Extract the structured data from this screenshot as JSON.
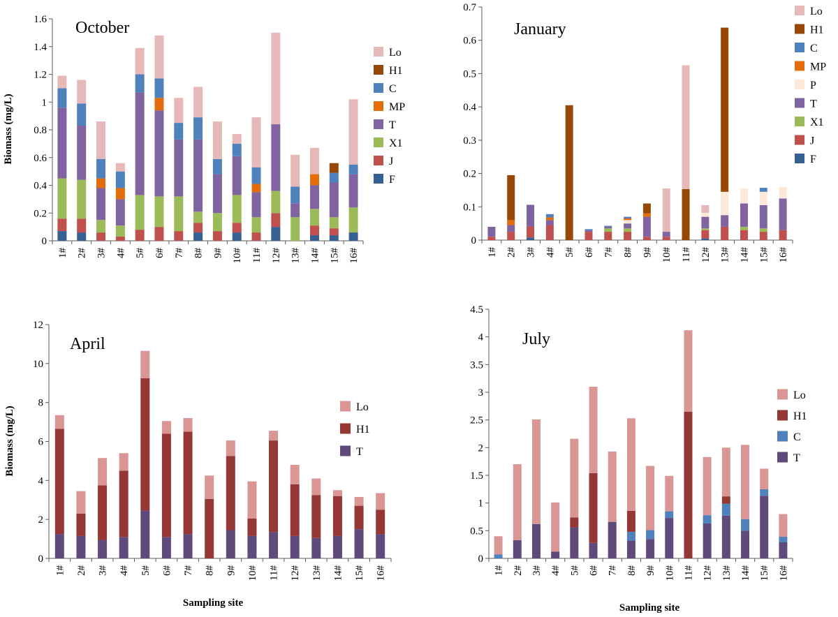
{
  "colors": {
    "Lo": "#e6b8b7",
    "H1": "#974706",
    "C": "#4f81bd",
    "MP": "#e46c0a",
    "P": "#fde9d9",
    "T": "#8064a2",
    "X1": "#9bbb59",
    "J": "#c0504d",
    "F": "#376092",
    "H1_dark": "#953735",
    "Lo_mid": "#d99694",
    "T_dark": "#604a7b"
  },
  "chart_data": [
    {
      "id": "october",
      "type": "bar",
      "stacked": true,
      "title": "October",
      "ylabel": "Biomass (mg/L)",
      "xlabel": "",
      "ylim": [
        0,
        1.6
      ],
      "yticks": [
        "0",
        "0.2",
        "0.4",
        "0.6",
        "0.8",
        "1",
        "1.2",
        "1.4",
        "1.6"
      ],
      "categories": [
        "1#",
        "2#",
        "3#",
        "4#",
        "5#",
        "6#",
        "7#",
        "8#",
        "9#",
        "10#",
        "11#",
        "12#",
        "13#",
        "14#",
        "15#",
        "16#"
      ],
      "series": [
        {
          "name": "F",
          "color": "#376092",
          "values": [
            0.07,
            0.06,
            0,
            0,
            0,
            0,
            0,
            0.06,
            0,
            0.06,
            0,
            0.1,
            0,
            0.04,
            0.04,
            0.06
          ]
        },
        {
          "name": "J",
          "color": "#c0504d",
          "values": [
            0.09,
            0.1,
            0.06,
            0.03,
            0.08,
            0.1,
            0.07,
            0.07,
            0.07,
            0.07,
            0.06,
            0.1,
            0,
            0.07,
            0.05,
            0
          ]
        },
        {
          "name": "X1",
          "color": "#9bbb59",
          "values": [
            0.29,
            0.28,
            0.09,
            0.08,
            0.25,
            0.22,
            0.25,
            0.08,
            0.13,
            0.2,
            0.11,
            0.16,
            0.17,
            0.12,
            0.08,
            0.18
          ]
        },
        {
          "name": "T",
          "color": "#8064a2",
          "values": [
            0.51,
            0.39,
            0.23,
            0.19,
            0.74,
            0.62,
            0.41,
            0.52,
            0.28,
            0.28,
            0.18,
            0.48,
            0.1,
            0.17,
            0.25,
            0.24
          ]
        },
        {
          "name": "MP",
          "color": "#e46c0a",
          "values": [
            0,
            0,
            0.07,
            0.08,
            0,
            0.09,
            0,
            0,
            0,
            0,
            0.06,
            0,
            0,
            0.08,
            0,
            0
          ]
        },
        {
          "name": "C",
          "color": "#4f81bd",
          "values": [
            0.14,
            0.16,
            0.14,
            0.12,
            0.13,
            0.14,
            0.12,
            0.16,
            0.11,
            0.09,
            0.12,
            0,
            0.12,
            0,
            0.07,
            0.07
          ]
        },
        {
          "name": "H1",
          "color": "#974706",
          "values": [
            0,
            0,
            0,
            0,
            0,
            0,
            0,
            0,
            0,
            0,
            0,
            0,
            0,
            0,
            0.07,
            0
          ]
        },
        {
          "name": "Lo",
          "color": "#e6b8b7",
          "values": [
            0.09,
            0.17,
            0.27,
            0.06,
            0.19,
            0.31,
            0.18,
            0.22,
            0.27,
            0.07,
            0.36,
            0.66,
            0.23,
            0.19,
            0,
            0.47
          ]
        }
      ],
      "legend": [
        "Lo",
        "H1",
        "C",
        "MP",
        "T",
        "X1",
        "J",
        "F"
      ]
    },
    {
      "id": "january",
      "type": "bar",
      "stacked": true,
      "title": "January",
      "ylabel": "",
      "xlabel": "",
      "ylim": [
        0,
        0.7
      ],
      "yticks": [
        "0",
        "0.1",
        "0.2",
        "0.3",
        "0.4",
        "0.5",
        "0.6",
        "0.7"
      ],
      "categories": [
        "1#",
        "2#",
        "3#",
        "4#",
        "5#",
        "6#",
        "7#",
        "8#",
        "9#",
        "10#",
        "11#",
        "12#",
        "13#",
        "14#",
        "15#",
        "16#"
      ],
      "series": [
        {
          "name": "F",
          "color": "#376092",
          "values": [
            0,
            0,
            0.008,
            0,
            0,
            0,
            0,
            0,
            0,
            0,
            0,
            0.005,
            0,
            0,
            0,
            0
          ]
        },
        {
          "name": "J",
          "color": "#c0504d",
          "values": [
            0.01,
            0.025,
            0.033,
            0.045,
            0,
            0.025,
            0.025,
            0.025,
            0.01,
            0.01,
            0,
            0.025,
            0.04,
            0.03,
            0.025,
            0.03
          ]
        },
        {
          "name": "X1",
          "color": "#9bbb59",
          "values": [
            0,
            0,
            0,
            0,
            0,
            0,
            0.01,
            0.01,
            0,
            0,
            0,
            0.005,
            0,
            0.01,
            0.01,
            0
          ]
        },
        {
          "name": "T",
          "color": "#8064a2",
          "values": [
            0.03,
            0.02,
            0.065,
            0.015,
            0,
            0.005,
            0.005,
            0.015,
            0.06,
            0.015,
            0,
            0.035,
            0.035,
            0.07,
            0.07,
            0.095
          ]
        },
        {
          "name": "P",
          "color": "#fde9d9",
          "values": [
            0,
            0,
            0,
            0,
            0,
            0,
            0,
            0.01,
            0,
            0,
            0,
            0.012,
            0.07,
            0.045,
            0.04,
            0.035
          ]
        },
        {
          "name": "MP",
          "color": "#e46c0a",
          "values": [
            0,
            0.015,
            0,
            0.008,
            0,
            0,
            0,
            0.005,
            0.01,
            0,
            0,
            0,
            0,
            0,
            0,
            0
          ]
        },
        {
          "name": "C",
          "color": "#4f81bd",
          "values": [
            0,
            0,
            0,
            0.01,
            0,
            0.003,
            0.003,
            0.005,
            0,
            0,
            0,
            0,
            0,
            0,
            0.012,
            0
          ]
        },
        {
          "name": "H1",
          "color": "#974706",
          "values": [
            0,
            0.135,
            0,
            0,
            0.405,
            0,
            0,
            0,
            0.03,
            0,
            0.153,
            0,
            0.493,
            0,
            0,
            0
          ]
        },
        {
          "name": "Lo",
          "color": "#e6b8b7",
          "values": [
            0,
            0,
            0,
            0,
            0,
            0,
            0,
            0,
            0,
            0.13,
            0.372,
            0.023,
            0,
            0,
            0,
            0
          ]
        }
      ],
      "legend": [
        "Lo",
        "H1",
        "C",
        "MP",
        "P",
        "T",
        "X1",
        "J",
        "F"
      ]
    },
    {
      "id": "april",
      "type": "bar",
      "stacked": true,
      "title": "April",
      "ylabel": "Biomass (mg/L)",
      "xlabel": "Sampling site",
      "ylim": [
        0,
        12
      ],
      "yticks": [
        "0",
        "2",
        "4",
        "6",
        "8",
        "10",
        "12"
      ],
      "categories": [
        "1#",
        "2#",
        "3#",
        "4#",
        "5#",
        "6#",
        "7#",
        "8#",
        "9#",
        "10#",
        "11#",
        "12#",
        "13#",
        "14#",
        "15#",
        "16#"
      ],
      "series": [
        {
          "name": "T",
          "color": "#604a7b",
          "values": [
            1.25,
            1.15,
            0.95,
            1.1,
            2.45,
            1.1,
            1.25,
            0,
            1.45,
            1.15,
            1.35,
            1.15,
            1.05,
            1.15,
            1.5,
            1.25
          ]
        },
        {
          "name": "H1",
          "color": "#953735",
          "values": [
            5.4,
            1.15,
            2.8,
            3.4,
            6.8,
            5.3,
            5.25,
            3.05,
            3.8,
            0.9,
            4.7,
            2.65,
            2.2,
            2.05,
            1.2,
            1.25
          ]
        },
        {
          "name": "Lo",
          "color": "#d99694",
          "values": [
            0.7,
            1.15,
            1.4,
            0.9,
            1.4,
            0.65,
            0.7,
            1.2,
            0.8,
            1.9,
            0.5,
            1.0,
            0.85,
            0.3,
            0.45,
            0.85
          ]
        }
      ],
      "legend": [
        "Lo",
        "H1",
        "T"
      ]
    },
    {
      "id": "july",
      "type": "bar",
      "stacked": true,
      "title": "July",
      "ylabel": "",
      "xlabel": "Sampling site",
      "ylim": [
        0,
        4.5
      ],
      "yticks": [
        "0",
        "0.5",
        "1",
        "1.5",
        "2",
        "2.5",
        "3",
        "3.5",
        "4",
        "4.5"
      ],
      "categories": [
        "1#",
        "2#",
        "3#",
        "4#",
        "5#",
        "6#",
        "7#",
        "8#",
        "9#",
        "10#",
        "11#",
        "12#",
        "13#",
        "14#",
        "15#",
        "16#"
      ],
      "series": [
        {
          "name": "T",
          "color": "#604a7b",
          "values": [
            0,
            0.33,
            0.62,
            0.12,
            0.56,
            0.28,
            0.66,
            0.32,
            0.35,
            0.73,
            0,
            0.63,
            0.77,
            0.5,
            1.13,
            0.29
          ]
        },
        {
          "name": "C",
          "color": "#4f81bd",
          "values": [
            0.07,
            0,
            0,
            0,
            0,
            0,
            0,
            0.16,
            0.16,
            0.12,
            0,
            0.15,
            0.22,
            0.21,
            0.12,
            0.1
          ]
        },
        {
          "name": "H1",
          "color": "#953735",
          "values": [
            0,
            0,
            0,
            0,
            0.18,
            1.26,
            0,
            0.38,
            0,
            0,
            2.65,
            0,
            0.13,
            0,
            0,
            0
          ]
        },
        {
          "name": "Lo",
          "color": "#d99694",
          "values": [
            0.33,
            1.37,
            1.89,
            0.89,
            1.42,
            1.56,
            1.27,
            1.67,
            1.16,
            0.64,
            1.47,
            1.05,
            0.88,
            1.34,
            0.37,
            0.41
          ]
        }
      ],
      "legend": [
        "Lo",
        "H1",
        "C",
        "T"
      ]
    }
  ]
}
